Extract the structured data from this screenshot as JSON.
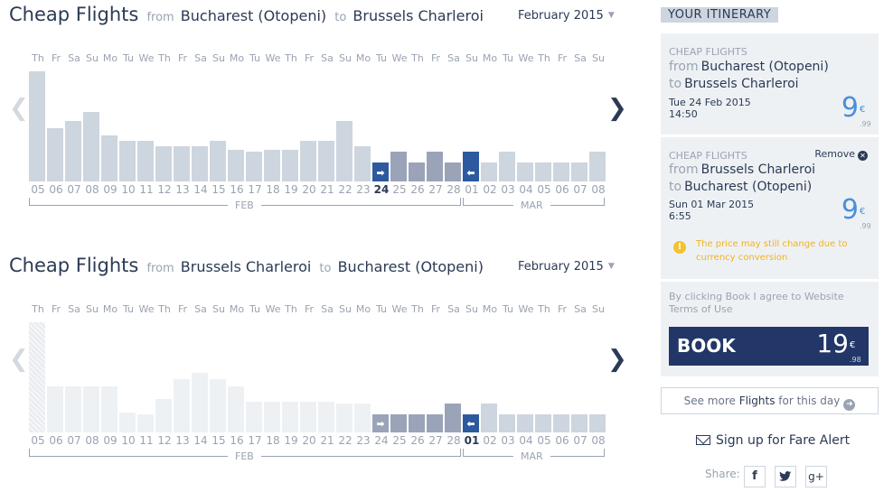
{
  "outbound": {
    "title": "Cheap Flights",
    "from_label": "from",
    "origin": "Bucharest (Otopeni)",
    "to_label": "to",
    "destination": "Brussels Charleroi",
    "month_selector": "February 2015",
    "days": [
      "Th",
      "Fr",
      "Sa",
      "Su",
      "Mo",
      "Tu",
      "We",
      "Th",
      "Fr",
      "Sa",
      "Su",
      "Mo",
      "Tu",
      "We",
      "Th",
      "Fr",
      "Sa",
      "Su",
      "Mo",
      "Tu",
      "We",
      "Th",
      "Fr",
      "Sa",
      "Su",
      "Mo",
      "Tu",
      "We",
      "Th",
      "Fr",
      "Sa",
      "Su"
    ],
    "dates": [
      "05",
      "06",
      "07",
      "08",
      "09",
      "10",
      "11",
      "12",
      "13",
      "14",
      "15",
      "16",
      "17",
      "18",
      "19",
      "20",
      "21",
      "22",
      "23",
      "24",
      "25",
      "26",
      "27",
      "28",
      "01",
      "02",
      "03",
      "04",
      "05",
      "06",
      "07",
      "08"
    ],
    "selected_date": "24",
    "month_labels": [
      "FEB",
      "MAR"
    ],
    "chart_data": {
      "type": "bar",
      "values": [
        1.0,
        0.48,
        0.55,
        0.63,
        0.42,
        0.37,
        0.37,
        0.32,
        0.32,
        0.32,
        0.37,
        0.29,
        0.27,
        0.29,
        0.29,
        0.37,
        0.37,
        0.55,
        0.32,
        0.17,
        0.27,
        0.17,
        0.27,
        0.17,
        0.27,
        0.17,
        0.27,
        0.17,
        0.17,
        0.17,
        0.17,
        0.27
      ],
      "states": [
        "light",
        "light",
        "light",
        "light",
        "light",
        "light",
        "light",
        "light",
        "light",
        "light",
        "light",
        "light",
        "light",
        "light",
        "light",
        "light",
        "light",
        "light",
        "light",
        "sel-out",
        "dark",
        "dark",
        "dark",
        "dark",
        "sel-back",
        "light",
        "light",
        "light",
        "light",
        "light",
        "light",
        "light"
      ]
    }
  },
  "return": {
    "title": "Cheap Flights",
    "from_label": "from",
    "origin": "Brussels Charleroi",
    "to_label": "to",
    "destination": "Bucharest (Otopeni)",
    "month_selector": "February 2015",
    "days": [
      "Th",
      "Fr",
      "Sa",
      "Su",
      "Mo",
      "Tu",
      "We",
      "Th",
      "Fr",
      "Sa",
      "Su",
      "Mo",
      "Tu",
      "We",
      "Th",
      "Fr",
      "Sa",
      "Su",
      "Mo",
      "Tu",
      "We",
      "Th",
      "Fr",
      "Sa",
      "Su",
      "Mo",
      "Tu",
      "We",
      "Th",
      "Fr",
      "Sa",
      "Su"
    ],
    "dates": [
      "05",
      "06",
      "07",
      "08",
      "09",
      "10",
      "11",
      "12",
      "13",
      "14",
      "15",
      "16",
      "17",
      "18",
      "19",
      "20",
      "21",
      "22",
      "23",
      "24",
      "25",
      "26",
      "27",
      "28",
      "01",
      "02",
      "03",
      "04",
      "05",
      "06",
      "07",
      "08"
    ],
    "selected_date": "01",
    "month_labels": [
      "FEB",
      "MAR"
    ],
    "chart_data": {
      "type": "bar",
      "values": [
        1.0,
        0.42,
        0.42,
        0.42,
        0.42,
        0.18,
        0.16,
        0.3,
        0.48,
        0.54,
        0.48,
        0.42,
        0.28,
        0.28,
        0.28,
        0.28,
        0.28,
        0.26,
        0.26,
        0.16,
        0.16,
        0.16,
        0.16,
        0.26,
        0.16,
        0.26,
        0.16,
        0.16,
        0.16,
        0.16,
        0.16,
        0.16
      ],
      "states": [
        "hatched",
        "faint",
        "faint",
        "faint",
        "faint",
        "faint",
        "faint",
        "faint",
        "faint",
        "faint",
        "faint",
        "faint",
        "faint",
        "faint",
        "faint",
        "faint",
        "faint",
        "faint",
        "faint",
        "dark-out",
        "dark",
        "dark",
        "dark",
        "dark",
        "sel-back",
        "light",
        "light",
        "light",
        "light",
        "light",
        "light",
        "light"
      ]
    }
  },
  "itinerary": {
    "header": "YOUR ITINERARY",
    "flight1": {
      "kicker": "CHEAP FLIGHTS",
      "from_label": "from",
      "origin": "Bucharest (Otopeni)",
      "to_label": "to",
      "destination": "Brussels Charleroi",
      "date": "Tue 24 Feb 2015",
      "time": "14:50",
      "price": "9",
      "currency": "€",
      "cents": ".99"
    },
    "flight2": {
      "kicker": "CHEAP FLIGHTS",
      "remove_label": "Remove",
      "from_label": "from",
      "origin": "Brussels Charleroi",
      "to_label": "to",
      "destination": "Bucharest (Otopeni)",
      "date": "Sun 01 Mar 2015",
      "time": "6:55",
      "price": "9",
      "currency": "€",
      "cents": ".99",
      "warning": "The price may still change due to currency conversion"
    },
    "terms": "By clicking Book I agree to Website Terms of Use",
    "book_label": "BOOK",
    "total_price": "19",
    "total_currency": "€",
    "total_cents": ".98"
  },
  "see_more": {
    "prefix": "See more ",
    "bold": "Flights",
    "suffix": " for this day"
  },
  "fare_alert": "Sign up for Fare Alert",
  "share_label": "Share:",
  "colors": {
    "navy": "#233668",
    "accent_blue": "#4a90d9",
    "warning": "#f2c230",
    "bar": "#cdd5de",
    "bar_dark": "#9aa3b8",
    "selected": "#2d5a9e"
  }
}
